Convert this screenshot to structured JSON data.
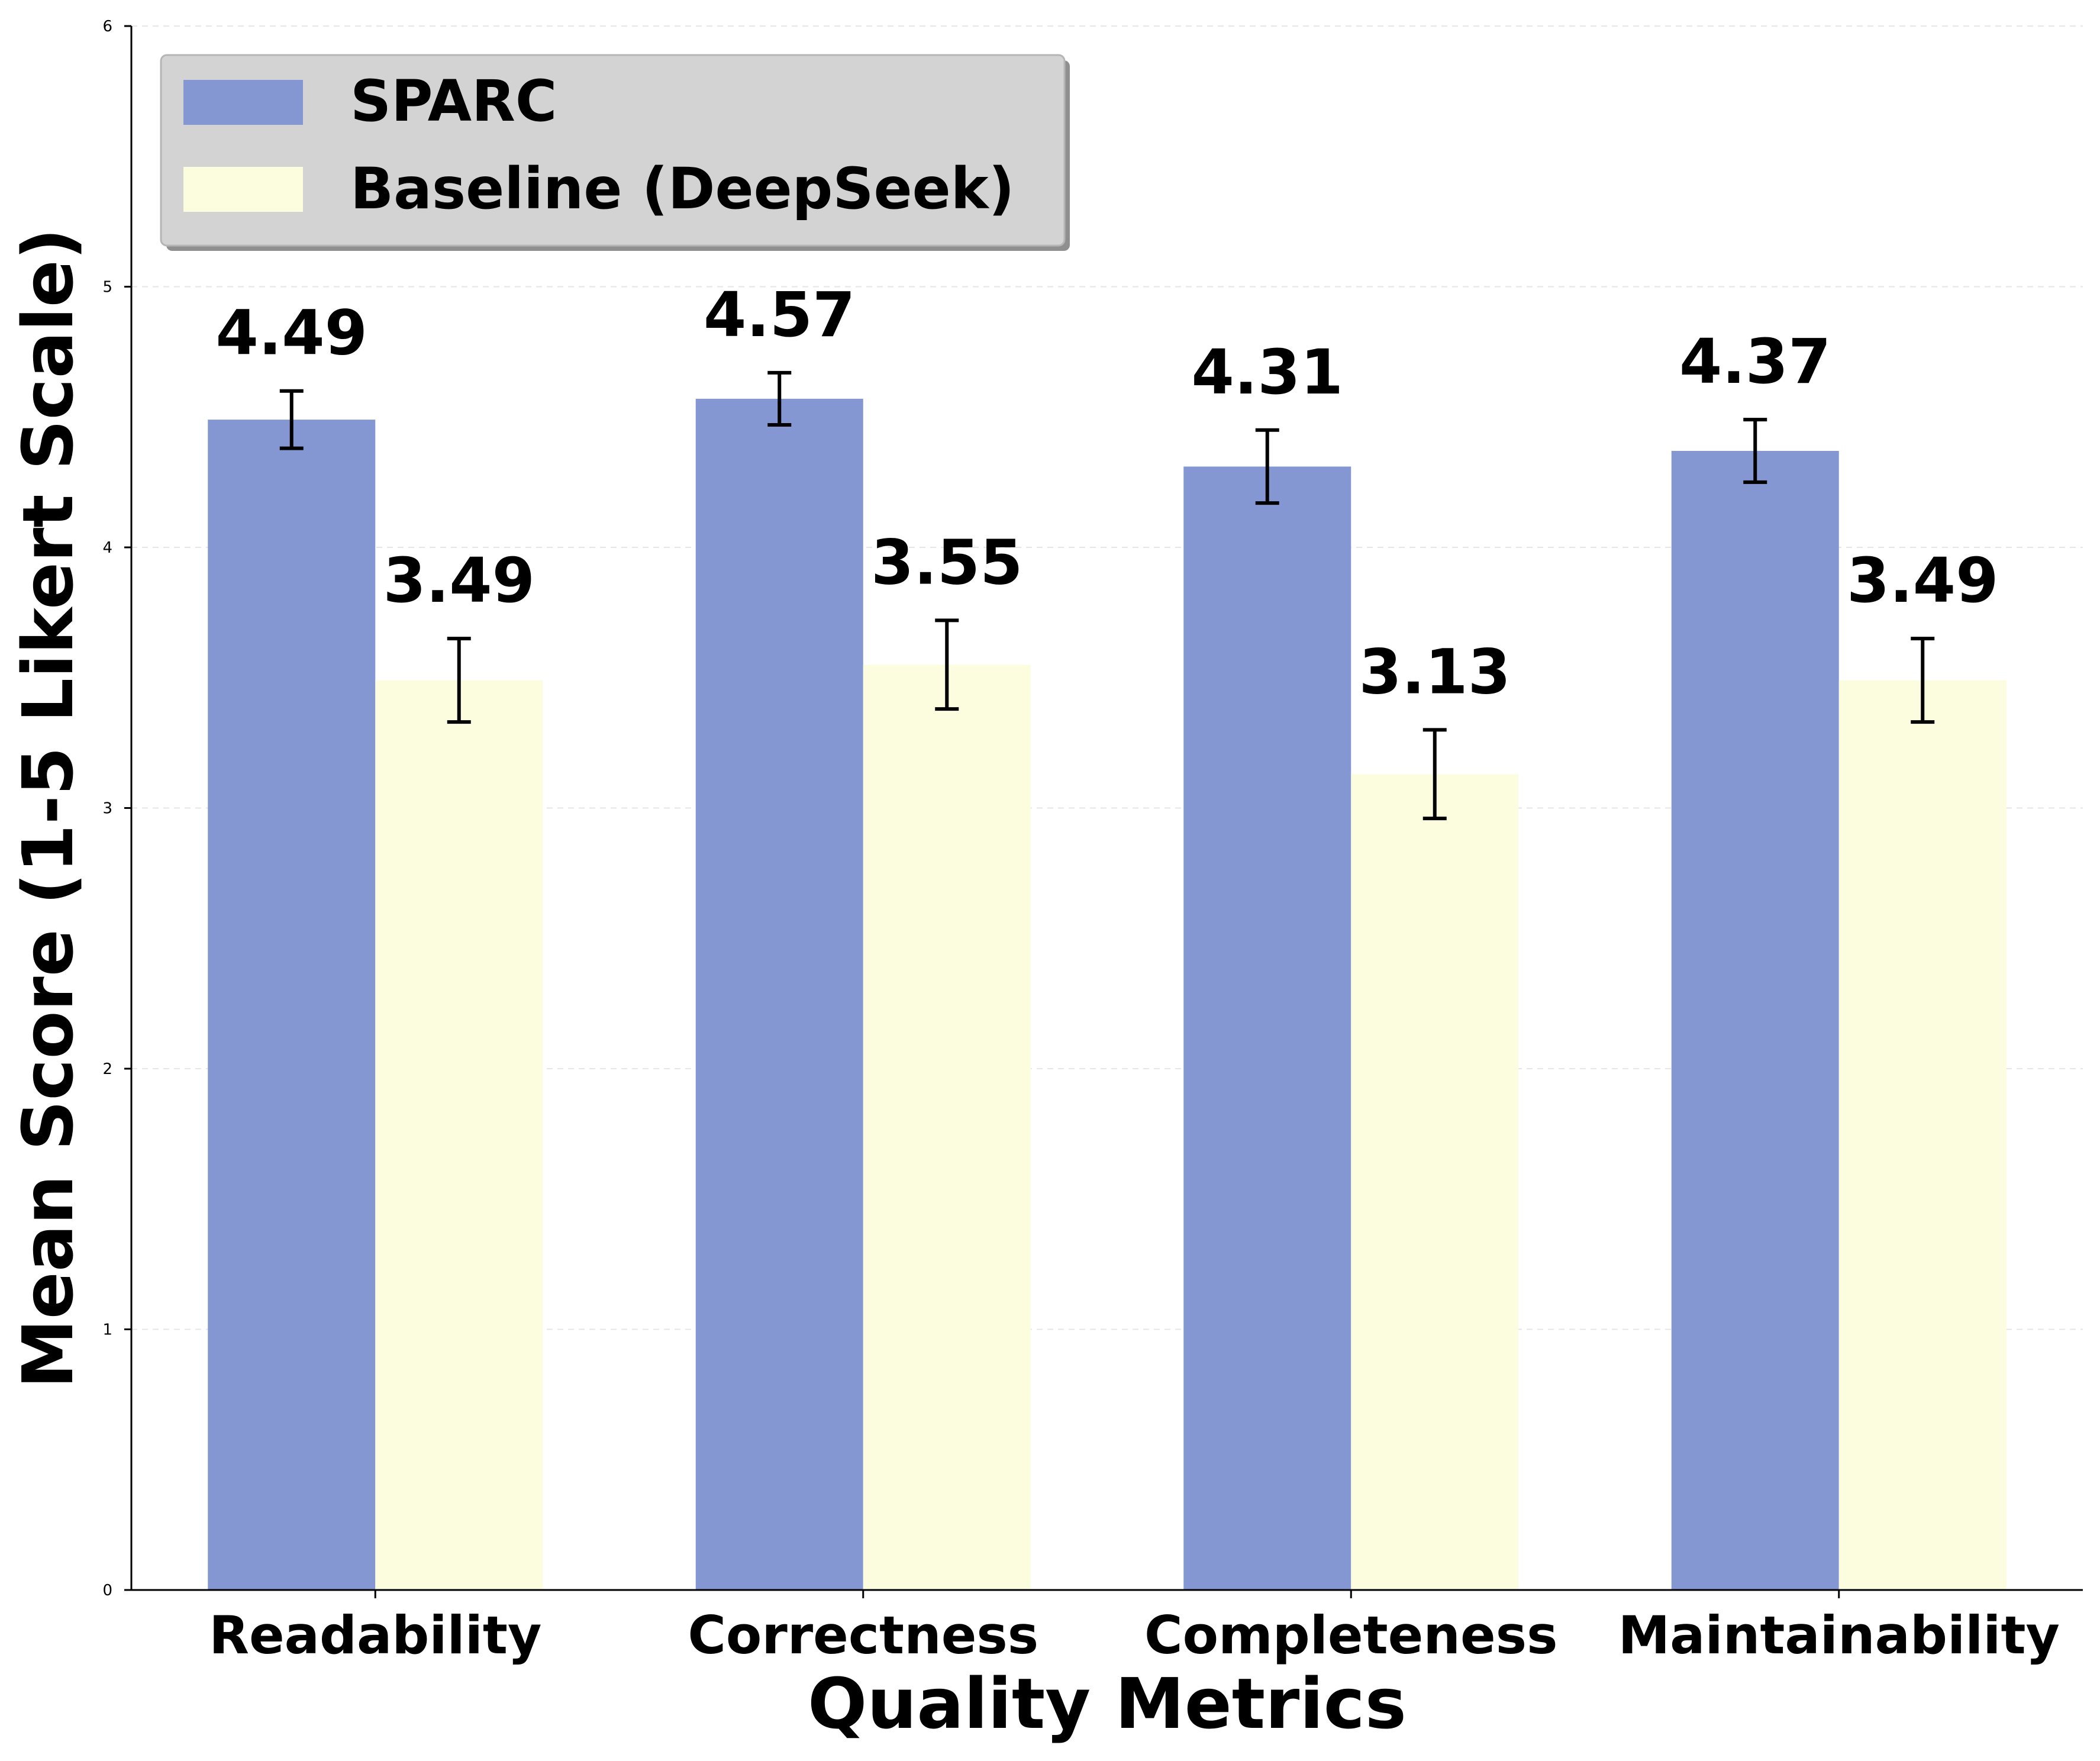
{
  "chart_data": {
    "type": "bar",
    "title": "",
    "xlabel": "Quality Metrics",
    "ylabel": "Mean Score (1-5 Likert Scale)",
    "ylim": [
      0,
      6
    ],
    "yticks": [
      "0",
      "1",
      "2",
      "3",
      "4",
      "5",
      "6"
    ],
    "grid": true,
    "legend_position": "top-left",
    "categories": [
      "Readability",
      "Correctness",
      "Completeness",
      "Maintainability"
    ],
    "series": [
      {
        "name": "SPARC",
        "color": "#8497d3",
        "values": [
          4.49,
          4.57,
          4.31,
          4.37
        ],
        "labels": [
          "4.49",
          "4.57",
          "4.31",
          "4.37"
        ],
        "errors": [
          0.11,
          0.1,
          0.14,
          0.12
        ]
      },
      {
        "name": "Baseline (DeepSeek)",
        "color": "#fbfdde",
        "values": [
          3.49,
          3.55,
          3.13,
          3.49
        ],
        "labels": [
          "3.49",
          "3.55",
          "3.13",
          "3.49"
        ],
        "errors": [
          0.16,
          0.17,
          0.17,
          0.16
        ]
      }
    ]
  }
}
